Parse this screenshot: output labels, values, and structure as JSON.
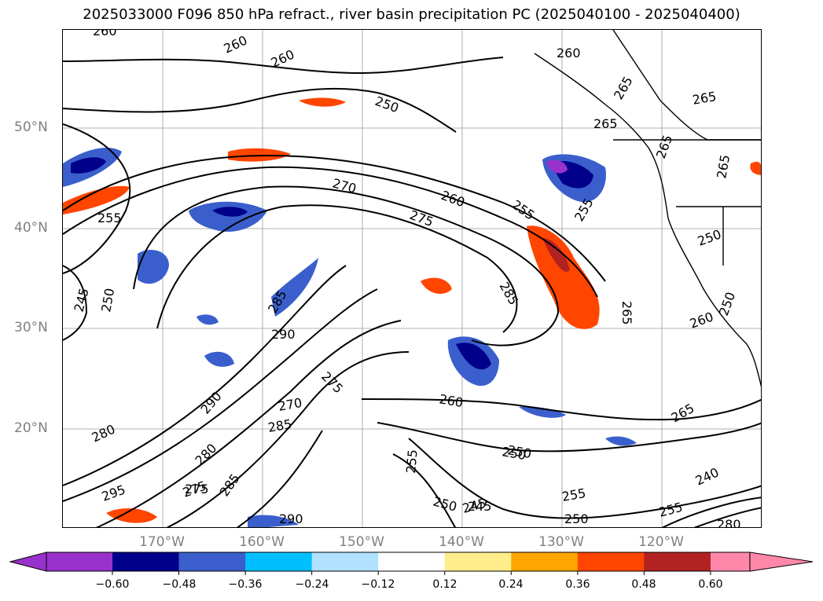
{
  "title": "2025033000 F096 850 hPa refract., river basin precipitation PC (2025040100 - 2025040400)",
  "lat_labels": [
    "50°N",
    "40°N",
    "30°N",
    "20°N"
  ],
  "lon_labels": [
    "170°W",
    "160°W",
    "150°W",
    "140°W",
    "130°W",
    "120°W"
  ],
  "contour_labels": [
    "260",
    "260",
    "260",
    "250",
    "260",
    "265",
    "265",
    "255",
    "265",
    "265",
    "270",
    "260",
    "275",
    "255",
    "255",
    "250",
    "245",
    "285",
    "290",
    "285",
    "275",
    "265",
    "250",
    "290",
    "270",
    "285",
    "275",
    "260",
    "250",
    "245",
    "280",
    "280",
    "275",
    "285",
    "295",
    "290",
    "255",
    "250",
    "245",
    "250",
    "255",
    "250",
    "255",
    "240",
    "260",
    "280",
    "265",
    "265",
    "250"
  ],
  "colorbar": {
    "ticks": [
      "−0.60",
      "−0.48",
      "−0.36",
      "−0.24",
      "−0.12",
      "0.12",
      "0.24",
      "0.36",
      "0.48",
      "0.60"
    ],
    "colors": [
      "#9932cc",
      "#00008b",
      "#3a5fcd",
      "#00bfff",
      "#b0e2ff",
      "#ffffff",
      "#ffec8b",
      "#ffa500",
      "#ff4500",
      "#b22222",
      "#ff88aa"
    ]
  },
  "chart_data": {
    "type": "map",
    "levels": [
      -0.6,
      -0.48,
      -0.36,
      -0.24,
      -0.12,
      0.12,
      0.24,
      0.36,
      0.48,
      0.6
    ],
    "contour_field": "850 hPa refractivity",
    "fill_field": "river basin precipitation PC",
    "lat_ticks": [
      50,
      40,
      30,
      20
    ],
    "lon_ticks": [
      -170,
      -160,
      -150,
      -140,
      -130,
      -120
    ]
  }
}
